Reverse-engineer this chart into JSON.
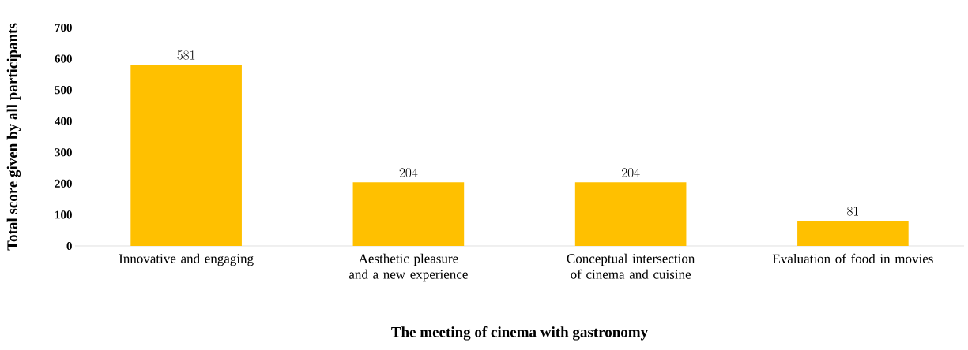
{
  "chart_data": {
    "type": "bar",
    "xlabel": "The meeting of cinema with gastronomy",
    "ylabel": "Total score given by all participants",
    "categories": [
      "Innovative and engaging",
      "Aesthetic pleasure and a new experience",
      "Conceptual intersection of cinema and cuisine",
      "Evaluation of food in movies"
    ],
    "values": [
      581,
      204,
      204,
      81
    ],
    "color": "#ffc000",
    "data_labels": true,
    "grid": false,
    "ylim": [
      0,
      700
    ],
    "yticks": [
      0,
      100,
      200,
      300,
      400,
      500,
      600,
      700
    ]
  }
}
